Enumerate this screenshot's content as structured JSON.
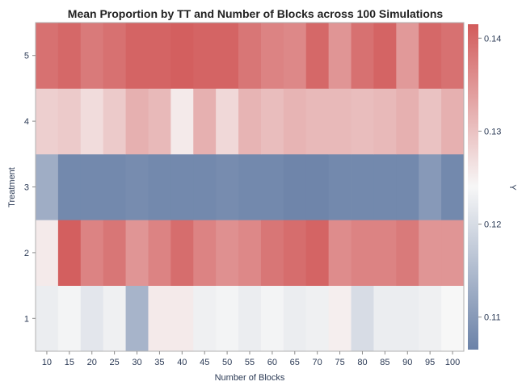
{
  "chart_data": {
    "type": "heatmap",
    "title": "Mean Proportion by TT and Number of Blocks across 100 Simulations",
    "xlabel": "Number of Blocks",
    "ylabel": "Treatment",
    "colorbar_label": "Y",
    "x": [
      10,
      15,
      20,
      25,
      30,
      35,
      40,
      45,
      50,
      55,
      60,
      65,
      70,
      75,
      80,
      85,
      90,
      95,
      100
    ],
    "y": [
      1,
      2,
      3,
      4,
      5
    ],
    "xlim": [
      7.5,
      102.5
    ],
    "ylim": [
      0.5,
      5.5
    ],
    "color_range": [
      0.1065,
      0.1415
    ],
    "colorbar_ticks": [
      0.11,
      0.12,
      0.13,
      0.14
    ],
    "colorbar_tick_labels": [
      "0.11",
      "0.12",
      "0.13",
      "0.14"
    ],
    "colors": {
      "low": "#6b82a8",
      "mid": "#f7f7f7",
      "high": "#d25b5b"
    },
    "rows": [
      {
        "treatment": 1,
        "values": [
          0.1225,
          0.1235,
          0.1215,
          0.123,
          0.114,
          0.1255,
          0.1255,
          0.123,
          0.1235,
          0.1225,
          0.1235,
          0.1225,
          0.123,
          0.125,
          0.12,
          0.1225,
          0.1225,
          0.123,
          0.124
        ]
      },
      {
        "treatment": 2,
        "values": [
          0.1255,
          0.141,
          0.137,
          0.1385,
          0.135,
          0.137,
          0.1395,
          0.137,
          0.1355,
          0.1365,
          0.1385,
          0.1395,
          0.1405,
          0.136,
          0.137,
          0.137,
          0.138,
          0.135,
          0.135
        ]
      },
      {
        "treatment": 3,
        "values": [
          0.113,
          0.1075,
          0.1075,
          0.1075,
          0.108,
          0.1075,
          0.1075,
          0.1075,
          0.108,
          0.1075,
          0.1075,
          0.107,
          0.107,
          0.1075,
          0.1075,
          0.1075,
          0.1075,
          0.11,
          0.1075
        ]
      },
      {
        "treatment": 4,
        "values": [
          0.1285,
          0.129,
          0.127,
          0.129,
          0.132,
          0.131,
          0.1255,
          0.132,
          0.1275,
          0.1315,
          0.1305,
          0.1315,
          0.131,
          0.131,
          0.1305,
          0.131,
          0.132,
          0.13,
          0.132
        ]
      },
      {
        "treatment": 5,
        "values": [
          0.139,
          0.14,
          0.138,
          0.139,
          0.1405,
          0.1405,
          0.141,
          0.1405,
          0.1405,
          0.1385,
          0.137,
          0.1365,
          0.14,
          0.135,
          0.139,
          0.1405,
          0.1345,
          0.14,
          0.139
        ]
      }
    ]
  }
}
